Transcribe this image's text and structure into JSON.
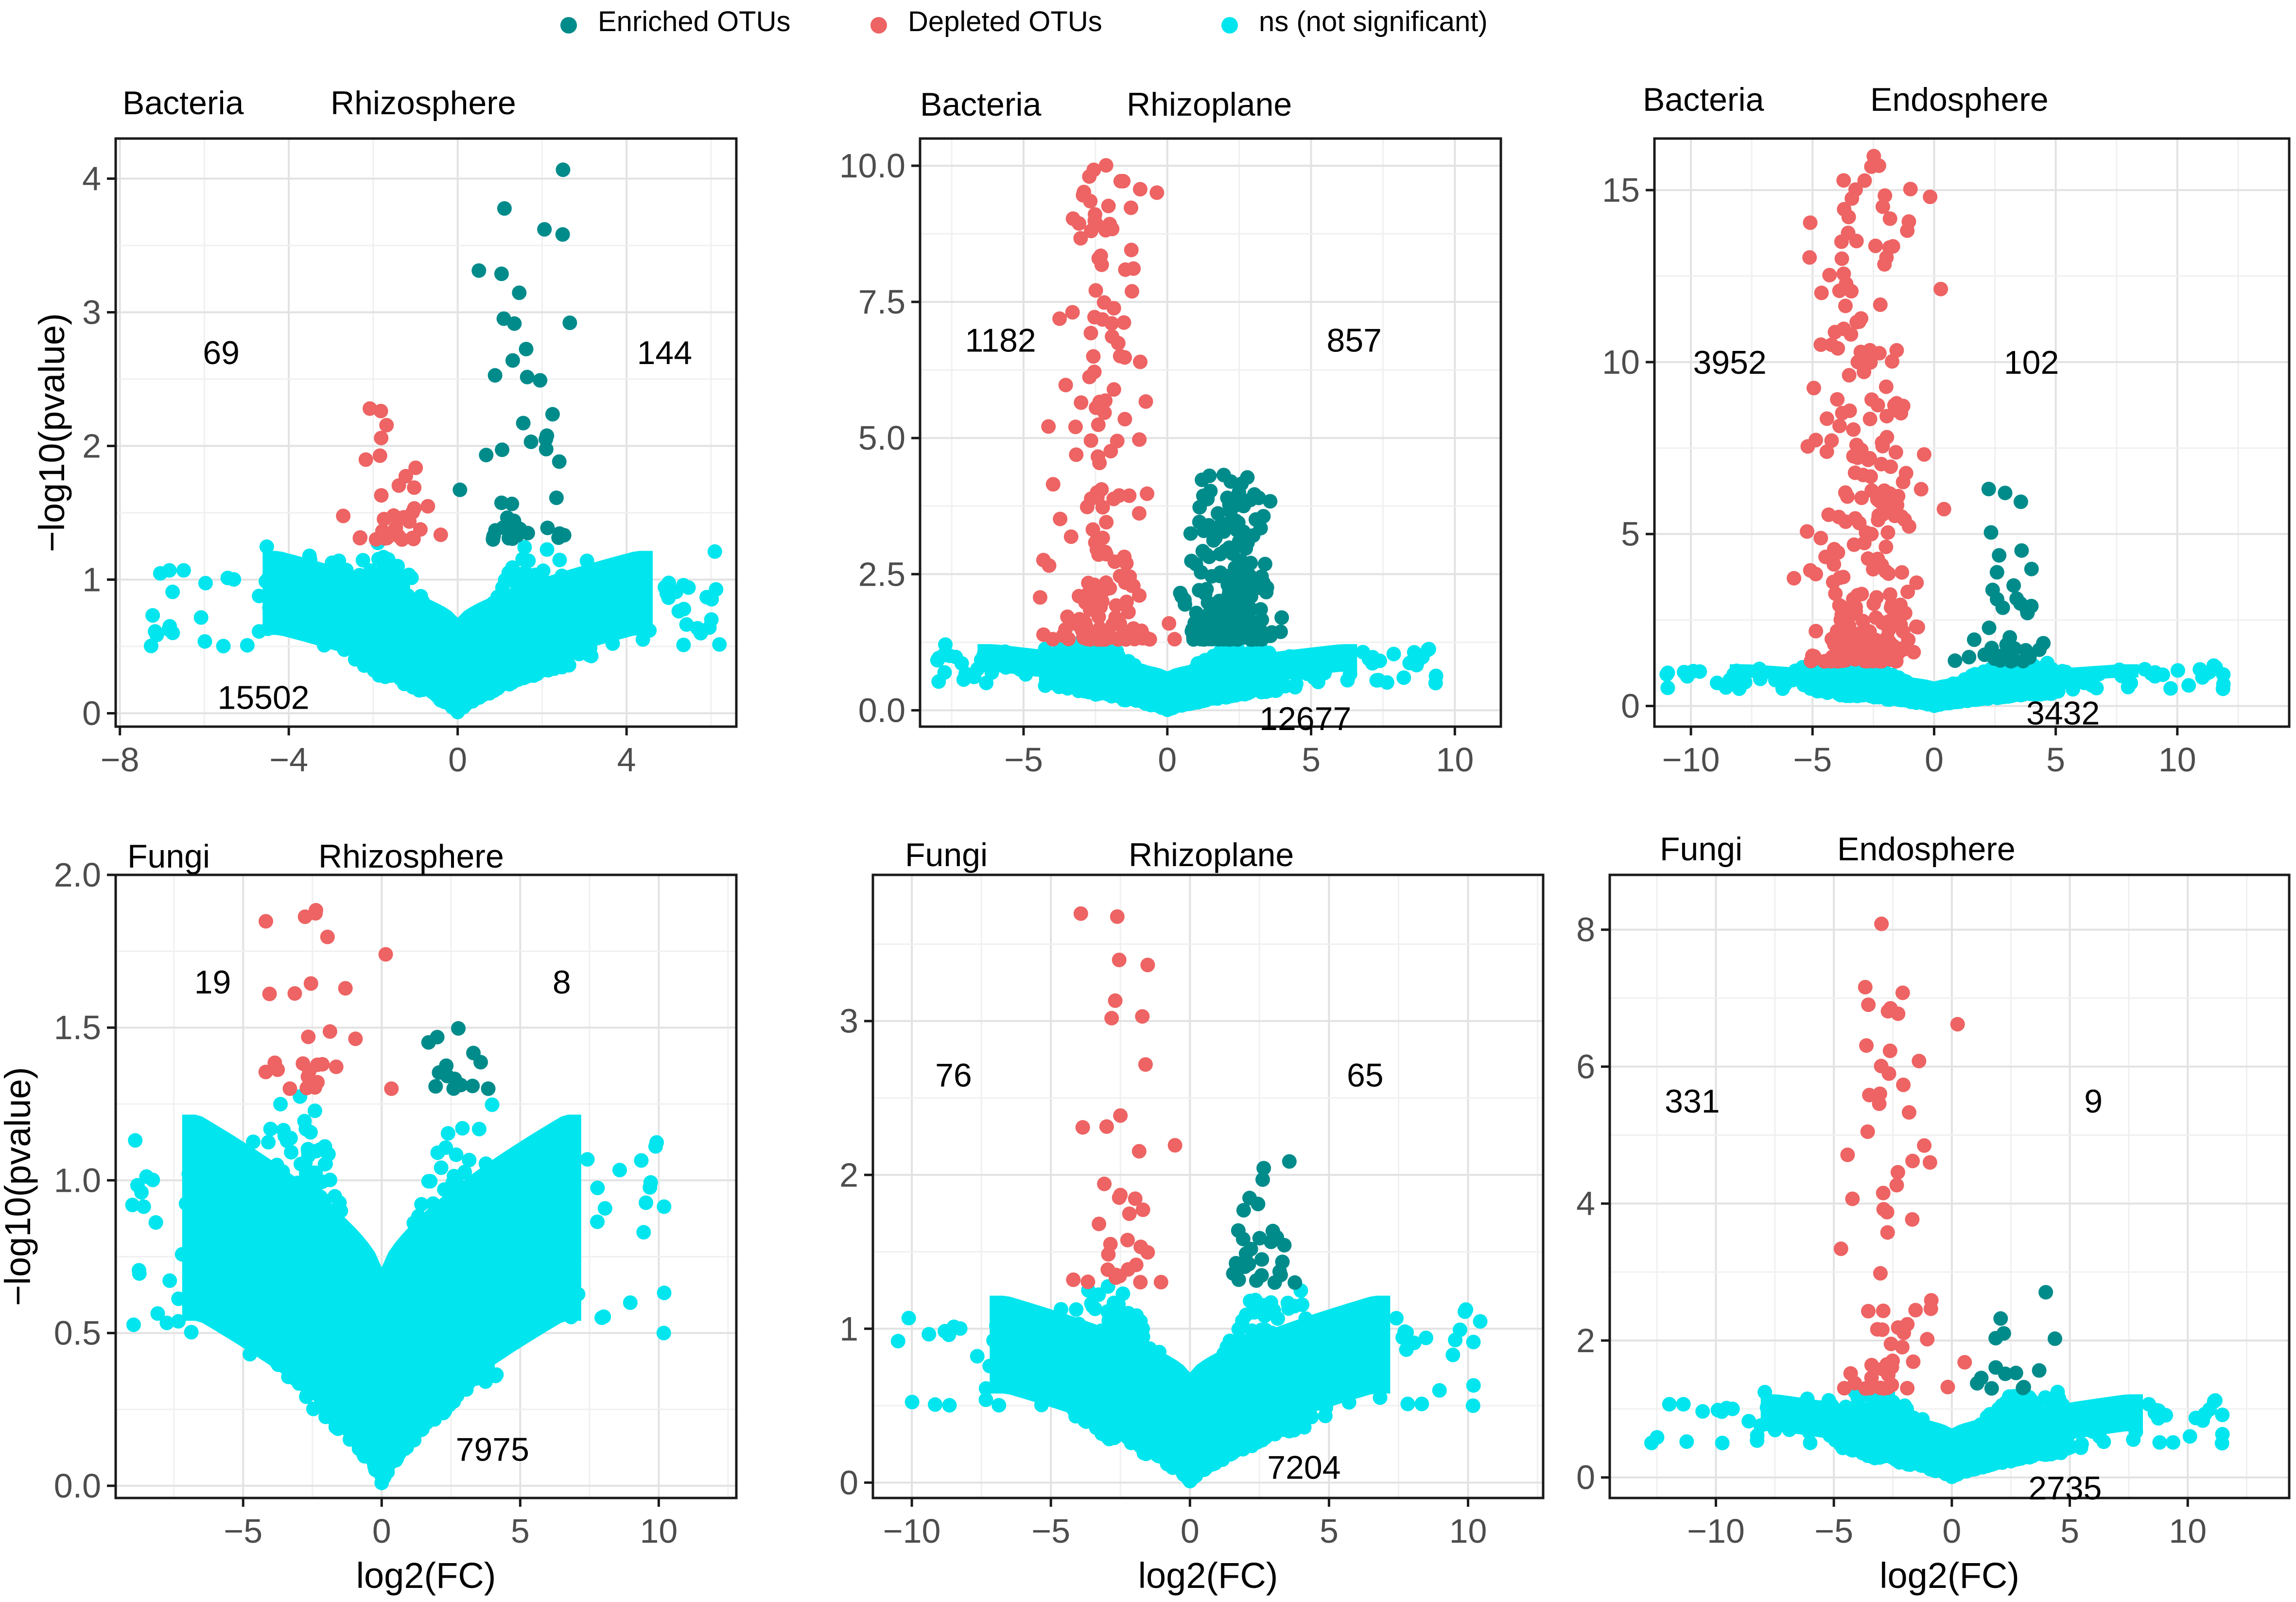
{
  "colors": {
    "enriched": "#008B8B",
    "depleted": "#EE6363",
    "ns": "#00E5EE",
    "grid_major": "#e2e2e2",
    "grid_minor": "#f0f0f0",
    "frame": "#1a1a1a",
    "text": "#000000",
    "tick_text": "#4d4d4d"
  },
  "legend": [
    {
      "key": "enriched",
      "label": "Enriched OTUs"
    },
    {
      "key": "depleted",
      "label": "Depleted OTUs"
    },
    {
      "key": "ns",
      "label": "ns  (not significant)"
    }
  ],
  "axis_titles": {
    "x": "log2(FC)",
    "y": "−log10(pvalue)"
  },
  "chart_data": [
    {
      "type": "scatter",
      "kingdom": "Bacteria",
      "compartment": "Rhizosphere",
      "xlim": [
        -8.1,
        6.6
      ],
      "ylim": [
        -0.1,
        4.3
      ],
      "xticks": [
        -8,
        -4,
        0,
        4
      ],
      "yticks": [
        0,
        1,
        2,
        3,
        4
      ],
      "ytick_labels": [
        "0",
        "1",
        "2",
        "3",
        "4"
      ],
      "counts": {
        "depleted": "69",
        "enriched": "144",
        "ns": "15502"
      },
      "count_pos": {
        "depleted": [
          -5.6,
          2.7
        ],
        "enriched": [
          4.9,
          2.7
        ],
        "ns": [
          -4.6,
          0.12
        ]
      },
      "threshold": 1.3,
      "xmin": -7.7,
      "xmax": 6.2,
      "ymax": 4.1
    },
    {
      "type": "scatter",
      "kingdom": "Bacteria",
      "compartment": "Rhizoplane",
      "xlim": [
        -8.6,
        11.6
      ],
      "ylim": [
        -0.3,
        10.5
      ],
      "xticks": [
        -5,
        0,
        5,
        10
      ],
      "yticks": [
        0,
        2.5,
        5,
        7.5,
        10
      ],
      "ytick_labels": [
        "0.0",
        "2.5",
        "5.0",
        "7.5",
        "10.0"
      ],
      "counts": {
        "depleted": "1182",
        "enriched": "857",
        "ns": "12677"
      },
      "count_pos": {
        "depleted": [
          -5.8,
          6.8
        ],
        "enriched": [
          6.5,
          6.8
        ],
        "ns": [
          4.8,
          -0.15
        ]
      },
      "threshold": 1.3,
      "xmin": -8,
      "xmax": 11,
      "ymax": 10.1
    },
    {
      "type": "scatter",
      "kingdom": "Bacteria",
      "compartment": "Endosphere",
      "xlim": [
        -11.5,
        14.6
      ],
      "ylim": [
        -0.6,
        16.5
      ],
      "xticks": [
        -10,
        -5,
        0,
        5,
        10
      ],
      "yticks": [
        0,
        5,
        10,
        15
      ],
      "ytick_labels": [
        "0",
        "5",
        "10",
        "15"
      ],
      "counts": {
        "depleted": "3952",
        "enriched": "102",
        "ns": "3432"
      },
      "count_pos": {
        "depleted": [
          -8.4,
          10
        ],
        "enriched": [
          4,
          10
        ],
        "ns": [
          5.3,
          -0.2
        ]
      },
      "threshold": 1.3,
      "xmin": -11,
      "xmax": 14,
      "ymax": 16
    },
    {
      "type": "scatter",
      "kingdom": "Fungi",
      "compartment": "Rhizosphere",
      "xlim": [
        -9.6,
        12.8
      ],
      "ylim": [
        -0.04,
        2.0
      ],
      "xticks": [
        -5,
        0,
        5,
        10
      ],
      "yticks": [
        0,
        0.5,
        1,
        1.5,
        2
      ],
      "ytick_labels": [
        "0.0",
        "0.5",
        "1.0",
        "1.5",
        "2.0"
      ],
      "counts": {
        "depleted": "19",
        "enriched": "8",
        "ns": "7975"
      },
      "count_pos": {
        "depleted": [
          -6.1,
          1.65
        ],
        "enriched": [
          6.5,
          1.65
        ],
        "ns": [
          4,
          0.12
        ]
      },
      "threshold": 1.3,
      "xmin": -9,
      "xmax": 12,
      "ymax": 1.92
    },
    {
      "type": "scatter",
      "kingdom": "Fungi",
      "compartment": "Rhizoplane",
      "xlim": [
        -11.4,
        12.7
      ],
      "ylim": [
        -0.1,
        3.95
      ],
      "xticks": [
        -10,
        -5,
        0,
        5,
        10
      ],
      "yticks": [
        0,
        1,
        2,
        3
      ],
      "ytick_labels": [
        "0",
        "1",
        "2",
        "3"
      ],
      "counts": {
        "depleted": "76",
        "enriched": "65",
        "ns": "7204"
      },
      "count_pos": {
        "depleted": [
          -8.5,
          2.65
        ],
        "enriched": [
          6.3,
          2.65
        ],
        "ns": [
          4.1,
          0.1
        ]
      },
      "threshold": 1.3,
      "xmin": -10.5,
      "xmax": 12,
      "ymax": 3.8
    },
    {
      "type": "scatter",
      "kingdom": "Fungi",
      "compartment": "Endosphere",
      "xlim": [
        -14.5,
        14.3
      ],
      "ylim": [
        -0.3,
        8.8
      ],
      "xticks": [
        -10,
        -5,
        0,
        5,
        10
      ],
      "yticks": [
        0,
        2,
        4,
        6,
        8
      ],
      "ytick_labels": [
        "0",
        "2",
        "4",
        "6",
        "8"
      ],
      "counts": {
        "depleted": "331",
        "enriched": "9",
        "ns": "2735"
      },
      "count_pos": {
        "depleted": [
          -11,
          5.5
        ],
        "enriched": [
          6,
          5.5
        ],
        "ns": [
          4.8,
          -0.15
        ]
      },
      "threshold": 1.3,
      "xmin": -13.5,
      "xmax": 13.5,
      "ymax": 8.2
    }
  ]
}
